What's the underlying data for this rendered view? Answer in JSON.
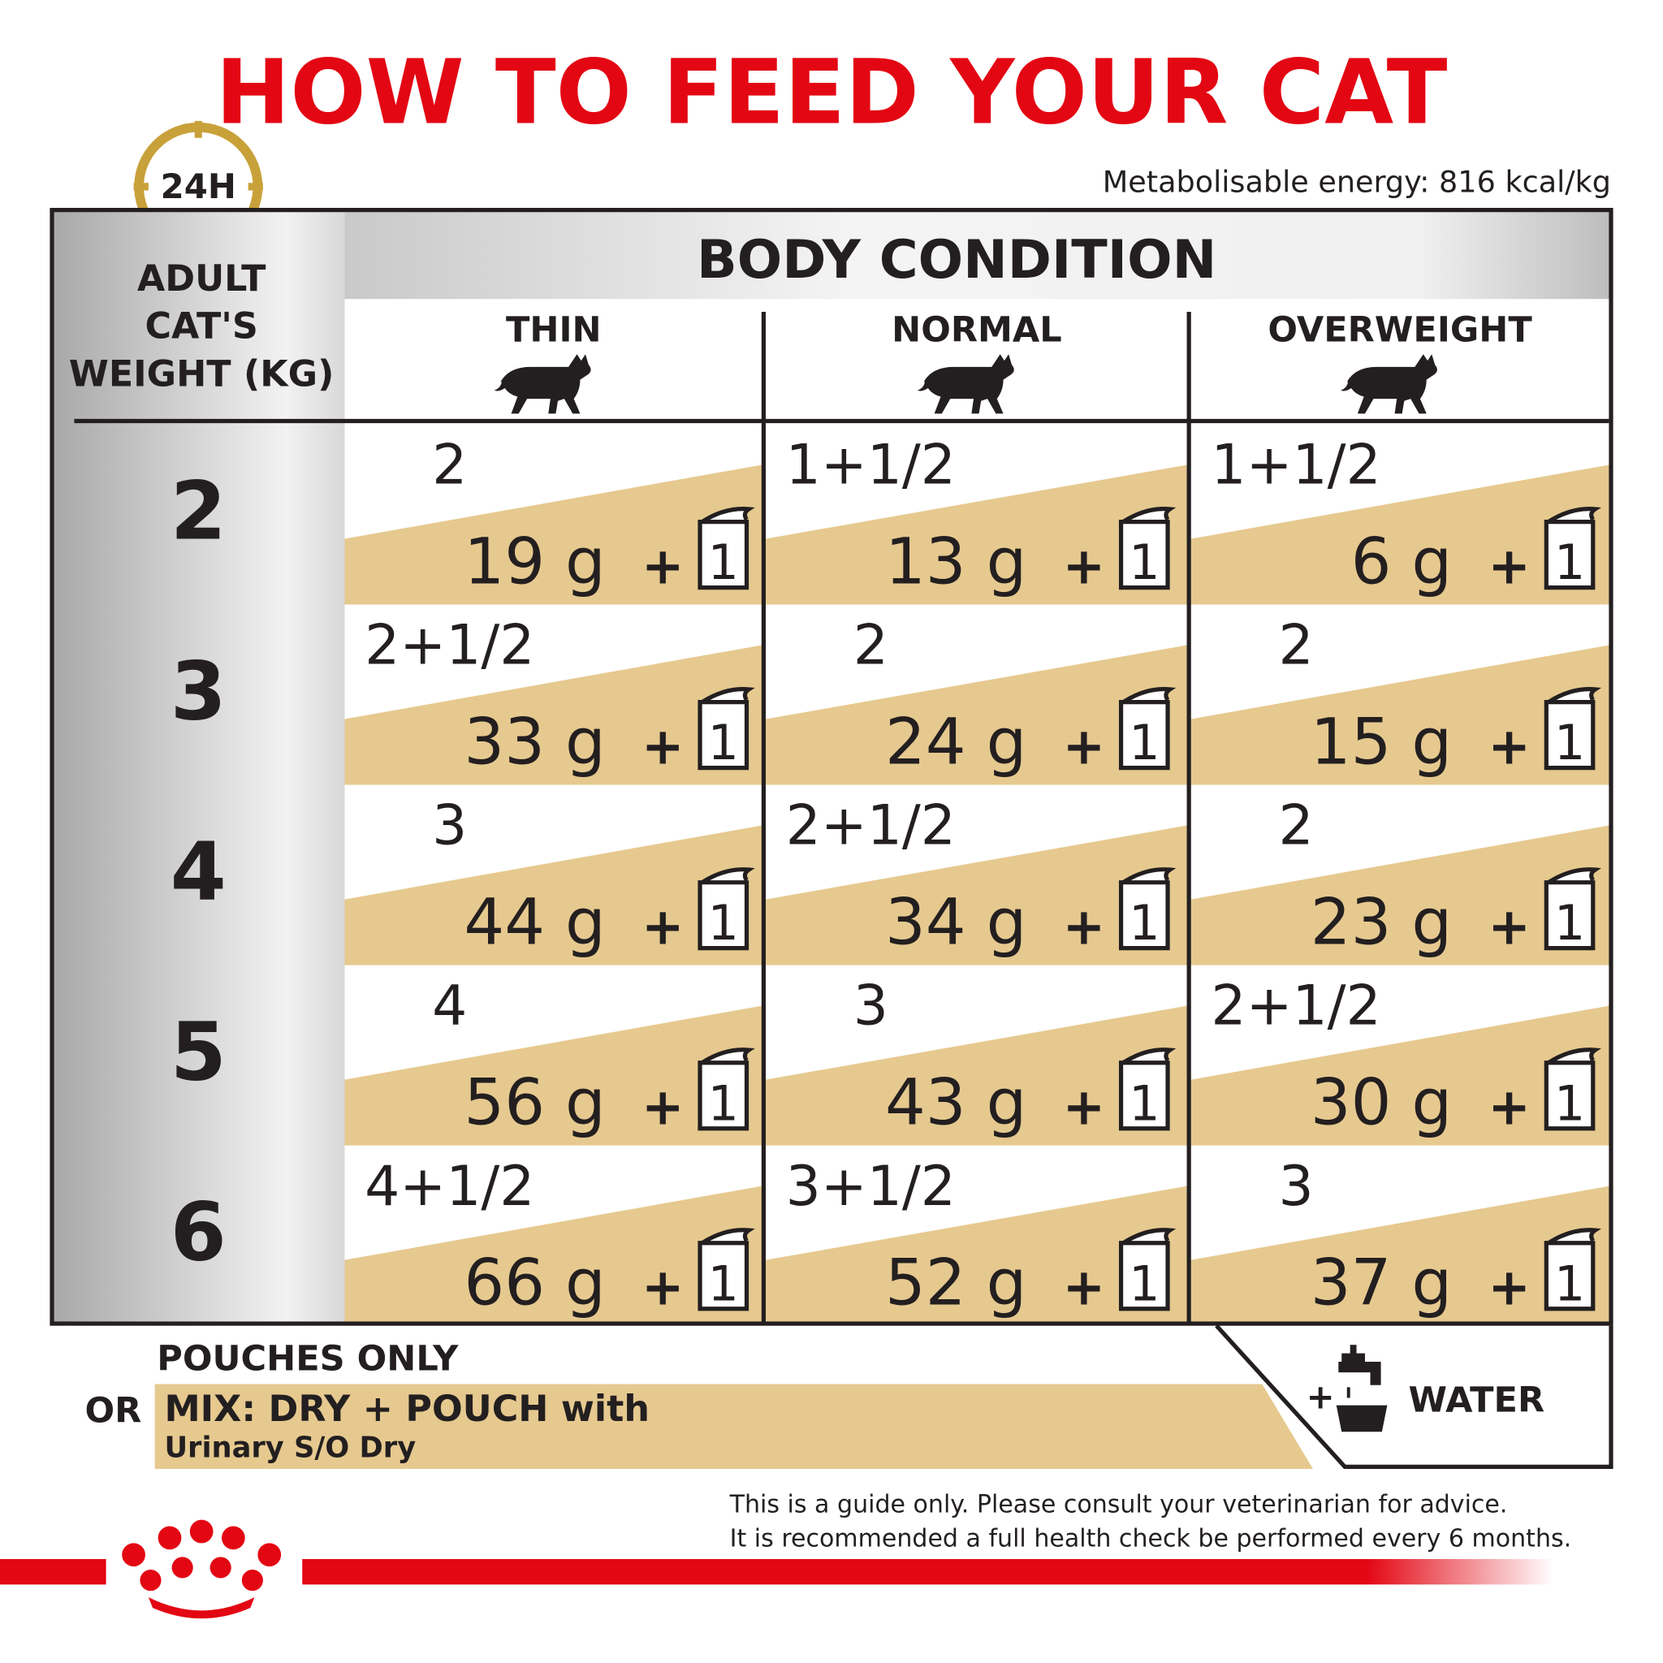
{
  "header": {
    "title": "HOW TO FEED YOUR CAT",
    "badge": "24H",
    "energy": "Metabolisable energy: 816 kcal/kg"
  },
  "table": {
    "row_header": [
      "ADULT",
      "CAT'S",
      "WEIGHT (KG)"
    ],
    "body_condition": "BODY CONDITION",
    "columns": [
      "THIN",
      "NORMAL",
      "OVERWEIGHT"
    ],
    "plus": "+",
    "pouch_label": "1",
    "rows": [
      {
        "weight": "2",
        "cells": [
          {
            "pouches": "2",
            "dry": "19 g"
          },
          {
            "pouches": "1+1/2",
            "dry": "13 g"
          },
          {
            "pouches": "1+1/2",
            "dry": "6 g"
          }
        ]
      },
      {
        "weight": "3",
        "cells": [
          {
            "pouches": "2+1/2",
            "dry": "33 g"
          },
          {
            "pouches": "2",
            "dry": "24 g"
          },
          {
            "pouches": "2",
            "dry": "15 g"
          }
        ]
      },
      {
        "weight": "4",
        "cells": [
          {
            "pouches": "3",
            "dry": "44 g"
          },
          {
            "pouches": "2+1/2",
            "dry": "34 g"
          },
          {
            "pouches": "2",
            "dry": "23 g"
          }
        ]
      },
      {
        "weight": "5",
        "cells": [
          {
            "pouches": "4",
            "dry": "56 g"
          },
          {
            "pouches": "3",
            "dry": "43 g"
          },
          {
            "pouches": "2+1/2",
            "dry": "30 g"
          }
        ]
      },
      {
        "weight": "6",
        "cells": [
          {
            "pouches": "4+1/2",
            "dry": "66 g"
          },
          {
            "pouches": "3+1/2",
            "dry": "52 g"
          },
          {
            "pouches": "3",
            "dry": "37 g"
          }
        ]
      }
    ]
  },
  "footer": {
    "pouches_only": "POUCHES ONLY",
    "or": "OR",
    "mix": "MIX: DRY + POUCH with",
    "mix_product": "Urinary S/O Dry",
    "water_plus": "+",
    "water": "WATER",
    "disclaimer": [
      "This is a guide only. Please consult your veterinarian for advice.",
      "It is recommended a full health check be performed every 6 months."
    ]
  }
}
